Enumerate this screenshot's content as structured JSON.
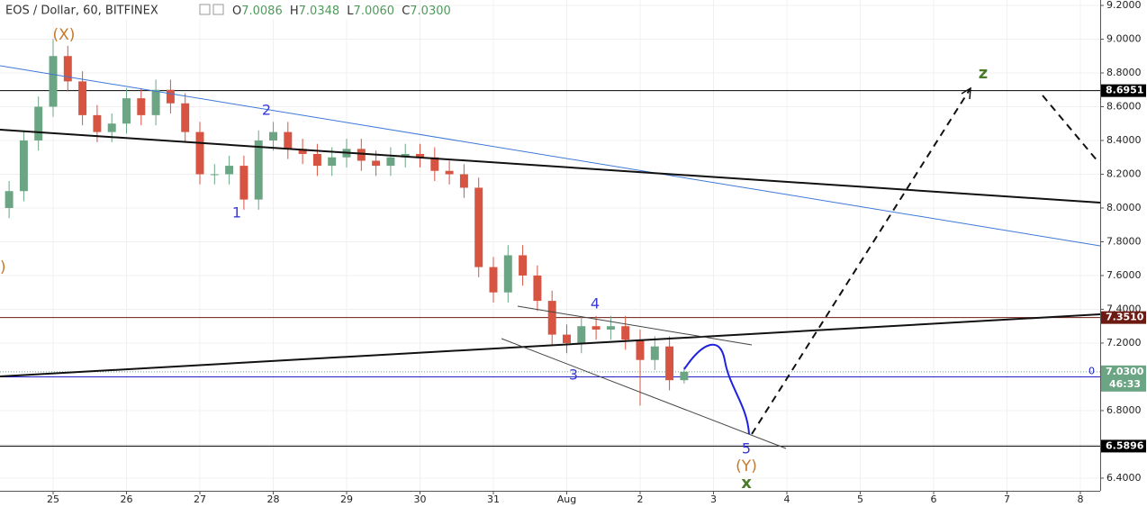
{
  "header": {
    "title": "EOS / Dollar, 60, BITFINEX",
    "ohlc": [
      [
        "O",
        "7.0086"
      ],
      [
        "H",
        "7.0348"
      ],
      [
        "L",
        "7.0060"
      ],
      [
        "C",
        "7.0300"
      ]
    ]
  },
  "chart_data": {
    "type": "candlestick",
    "x": [
      -0.6,
      -0.4,
      -0.2,
      0.0,
      0.2,
      0.4,
      0.6,
      0.8,
      1.0,
      1.2,
      1.4,
      1.6,
      1.8,
      2.0,
      2.2,
      2.4,
      2.6,
      2.8,
      3.0,
      3.2,
      3.4,
      3.6,
      3.8,
      4.0,
      4.2,
      4.4,
      4.6,
      4.8,
      5.0,
      5.2,
      5.4,
      5.6,
      5.8,
      6.0,
      6.2,
      6.4,
      6.6,
      6.8,
      7.0,
      7.2,
      7.4,
      7.6,
      7.8,
      8.0,
      8.2,
      8.4,
      8.6
    ],
    "open": [
      8.0,
      8.1,
      8.4,
      8.6,
      8.9,
      8.75,
      8.55,
      8.45,
      8.5,
      8.65,
      8.55,
      8.7,
      8.62,
      8.45,
      8.2,
      8.2,
      8.25,
      8.05,
      8.4,
      8.45,
      8.35,
      8.32,
      8.25,
      8.3,
      8.35,
      8.28,
      8.25,
      8.3,
      8.32,
      8.3,
      8.22,
      8.2,
      8.12,
      7.65,
      7.5,
      7.72,
      7.6,
      7.45,
      7.25,
      7.2,
      7.3,
      7.28,
      7.3,
      7.22,
      7.1,
      7.18,
      6.98
    ],
    "high": [
      8.16,
      8.46,
      8.66,
      9.0,
      8.96,
      8.81,
      8.61,
      8.56,
      8.71,
      8.71,
      8.76,
      8.76,
      8.68,
      8.51,
      8.26,
      8.31,
      8.31,
      8.46,
      8.51,
      8.51,
      8.41,
      8.38,
      8.36,
      8.41,
      8.41,
      8.34,
      8.36,
      8.38,
      8.38,
      8.36,
      8.28,
      8.26,
      8.18,
      7.71,
      7.78,
      7.78,
      7.66,
      7.51,
      7.31,
      7.36,
      7.36,
      7.36,
      7.36,
      7.28,
      7.24,
      7.24,
      7.06
    ],
    "low": [
      7.94,
      8.04,
      8.34,
      8.54,
      8.69,
      8.49,
      8.39,
      8.39,
      8.44,
      8.49,
      8.49,
      8.56,
      8.39,
      8.14,
      8.14,
      8.14,
      7.99,
      7.99,
      8.34,
      8.29,
      8.26,
      8.19,
      8.19,
      8.24,
      8.22,
      8.19,
      8.19,
      8.24,
      8.24,
      8.16,
      8.14,
      8.06,
      7.59,
      7.44,
      7.44,
      7.54,
      7.39,
      7.19,
      7.14,
      7.14,
      7.22,
      7.22,
      7.16,
      6.83,
      7.04,
      6.92,
      6.96
    ],
    "close": [
      8.1,
      8.4,
      8.6,
      8.9,
      8.75,
      8.55,
      8.45,
      8.5,
      8.65,
      8.55,
      8.7,
      8.62,
      8.45,
      8.2,
      8.2,
      8.25,
      8.05,
      8.4,
      8.45,
      8.35,
      8.32,
      8.25,
      8.3,
      8.35,
      8.28,
      8.25,
      8.3,
      8.32,
      8.3,
      8.22,
      8.2,
      8.12,
      7.65,
      7.5,
      7.72,
      7.6,
      7.45,
      7.25,
      7.2,
      7.3,
      7.28,
      7.3,
      7.22,
      7.1,
      7.18,
      6.98,
      7.03
    ],
    "up_color": "#6ba583",
    "down_color": "#d75442",
    "xlim": [
      -0.724,
      14.27
    ],
    "xticks": [
      {
        "value": 0,
        "label": "25"
      },
      {
        "value": 1,
        "label": "26"
      },
      {
        "value": 2,
        "label": "27"
      },
      {
        "value": 3,
        "label": "28"
      },
      {
        "value": 4,
        "label": "29"
      },
      {
        "value": 5,
        "label": "30"
      },
      {
        "value": 6,
        "label": "31"
      },
      {
        "value": 7,
        "label": "Aug"
      },
      {
        "value": 8,
        "label": "2"
      },
      {
        "value": 9,
        "label": "3"
      },
      {
        "value": 10,
        "label": "4"
      },
      {
        "value": 11,
        "label": "5"
      },
      {
        "value": 12,
        "label": "6"
      },
      {
        "value": 13,
        "label": "7"
      },
      {
        "value": 14,
        "label": "8"
      }
    ],
    "ylim": [
      6.325,
      9.232
    ],
    "yticks": [
      {
        "value": 9.2,
        "label": "9.2000"
      },
      {
        "value": 9.0,
        "label": "9.0000"
      },
      {
        "value": 8.8,
        "label": "8.8000"
      },
      {
        "value": 8.6,
        "label": "8.6000"
      },
      {
        "value": 8.4,
        "label": "8.4000"
      },
      {
        "value": 8.2,
        "label": "8.2000"
      },
      {
        "value": 8.0,
        "label": "8.0000"
      },
      {
        "value": 7.8,
        "label": "7.8000"
      },
      {
        "value": 7.6,
        "label": "7.6000"
      },
      {
        "value": 7.4,
        "label": "7.4000"
      },
      {
        "value": 7.2,
        "label": "7.2000"
      },
      {
        "value": 7.0,
        "label": "7.0000"
      },
      {
        "value": 6.8,
        "label": "6.8000"
      },
      {
        "value": 6.6,
        "label": "6.6000"
      },
      {
        "value": 6.4,
        "label": "6.4000"
      }
    ],
    "levels": [
      {
        "value": 8.6951,
        "label": "8.6951",
        "color": "#000000"
      },
      {
        "value": 7.351,
        "label": "7.3510",
        "color": "#6d1b12"
      },
      {
        "value": 6.5896,
        "label": "6.5896",
        "color": "#000000"
      }
    ],
    "last_price": {
      "value": 7.03,
      "label": "7.0300",
      "countdown": "46:33",
      "color": "#6ba583"
    },
    "fib_line": {
      "price": 7.0,
      "label": "0",
      "color": "#1e22c8"
    },
    "annotations": [
      "(X)",
      "2",
      "1",
      "3",
      "4",
      "5",
      "(Y)",
      "x",
      "z",
      ")"
    ]
  }
}
